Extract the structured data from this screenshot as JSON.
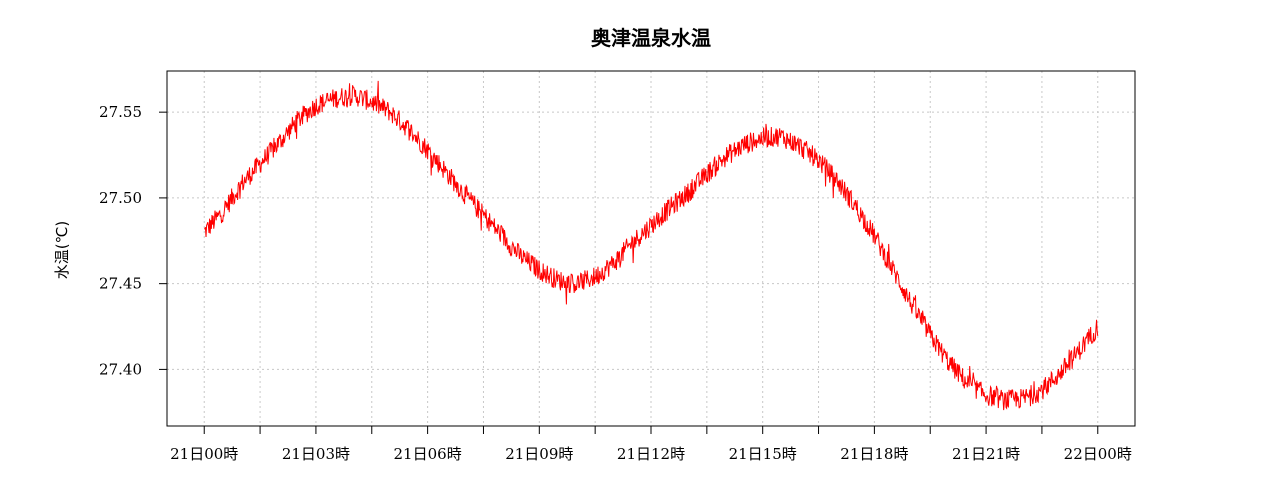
{
  "chart_data": {
    "type": "line",
    "title": "奥津温泉水温",
    "ylabel": "水温(℃)",
    "xlabel": "",
    "x_tick_labels": [
      "21日00時",
      "21日03時",
      "21日06時",
      "21日09時",
      "21日12時",
      "21日15時",
      "21日18時",
      "21日21時",
      "22日00時"
    ],
    "x_ticks_hours": [
      0,
      3,
      6,
      9,
      12,
      15,
      18,
      21,
      24
    ],
    "x_minor_ticks_hours": [
      1.5,
      4.5,
      7.5,
      10.5,
      13.5,
      16.5,
      19.5,
      22.5
    ],
    "xlim_hours": [
      -1,
      25
    ],
    "y_ticks": [
      27.4,
      27.45,
      27.5,
      27.55
    ],
    "y_tick_labels": [
      "27.40",
      "27.45",
      "27.50",
      "27.55"
    ],
    "ylim": [
      27.367,
      27.574
    ],
    "grid": true,
    "series": [
      {
        "color": "#ff0000",
        "x_hours": [
          0,
          0.5,
          1,
          1.5,
          2,
          2.5,
          3,
          3.5,
          4,
          4.5,
          5,
          5.5,
          6,
          6.5,
          7,
          7.5,
          8,
          8.5,
          9,
          9.5,
          10,
          10.5,
          11,
          11.5,
          12,
          12.5,
          13,
          13.5,
          14,
          14.5,
          15,
          15.5,
          16,
          16.5,
          17,
          17.5,
          18,
          18.5,
          19,
          19.5,
          20,
          20.5,
          21,
          21.5,
          22,
          22.5,
          23,
          23.5,
          24
        ],
        "values": [
          27.48,
          27.492,
          27.508,
          27.52,
          27.532,
          27.545,
          27.554,
          27.558,
          27.56,
          27.556,
          27.55,
          27.54,
          27.528,
          27.515,
          27.502,
          27.49,
          27.478,
          27.466,
          27.458,
          27.452,
          27.45,
          27.454,
          27.462,
          27.474,
          27.484,
          27.494,
          27.503,
          27.514,
          27.524,
          27.531,
          27.535,
          27.536,
          27.53,
          27.522,
          27.51,
          27.495,
          27.478,
          27.458,
          27.438,
          27.42,
          27.404,
          27.392,
          27.385,
          27.382,
          27.383,
          27.388,
          27.398,
          27.411,
          27.425
        ]
      }
    ]
  }
}
